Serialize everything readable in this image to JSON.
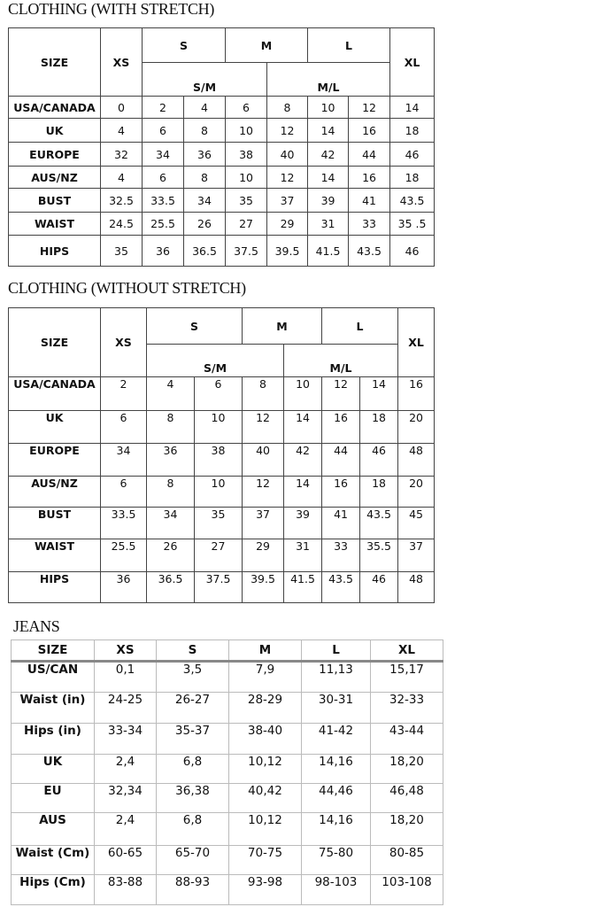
{
  "stretch": {
    "title": "CLOTHING (WITH STRETCH)",
    "header": {
      "size": "SIZE",
      "xs": "XS",
      "s": "S",
      "m": "M",
      "l": "L",
      "xl": "XL",
      "sm": "S/M",
      "ml": "M/L"
    },
    "rows": [
      {
        "label": "USA/CANADA",
        "values": [
          "0",
          "2",
          "4",
          "6",
          "8",
          "10",
          "12",
          "14"
        ]
      },
      {
        "label": "UK",
        "values": [
          "4",
          "6",
          "8",
          "10",
          "12",
          "14",
          "16",
          "18"
        ]
      },
      {
        "label": "EUROPE",
        "values": [
          "32",
          "34",
          "36",
          "38",
          "40",
          "42",
          "44",
          "46"
        ]
      },
      {
        "label": "AUS/NZ",
        "values": [
          "4",
          "6",
          "8",
          "10",
          "12",
          "14",
          "16",
          "18"
        ]
      },
      {
        "label": "BUST",
        "values": [
          "32.5",
          "33.5",
          "34",
          "35",
          "37",
          "39",
          "41",
          "43.5"
        ]
      },
      {
        "label": "WAIST",
        "values": [
          "24.5",
          "25.5",
          "26",
          "27",
          "29",
          "31",
          "33",
          "35 .5"
        ]
      },
      {
        "label": "HIPS",
        "values": [
          "35",
          "36",
          "36.5",
          "37.5",
          "39.5",
          "41.5",
          "43.5",
          "46"
        ]
      }
    ]
  },
  "nostretch": {
    "title": "CLOTHING (WITHOUT STRETCH)",
    "header": {
      "size": "SIZE",
      "xs": "XS",
      "s": "S",
      "m": "M",
      "l": "L",
      "xl": "XL",
      "sm": "S/M",
      "ml": "M/L"
    },
    "rows": [
      {
        "label": "USA/CANADA",
        "values": [
          "2",
          "4",
          "6",
          "8",
          "10",
          "12",
          "14",
          "16"
        ]
      },
      {
        "label": "UK",
        "values": [
          "6",
          "8",
          "10",
          "12",
          "14",
          "16",
          "18",
          "20"
        ]
      },
      {
        "label": "EUROPE",
        "values": [
          "34",
          "36",
          "38",
          "40",
          "42",
          "44",
          "46",
          "48"
        ]
      },
      {
        "label": "AUS/NZ",
        "values": [
          "6",
          "8",
          "10",
          "12",
          "14",
          "16",
          "18",
          "20"
        ]
      },
      {
        "label": "BUST",
        "values": [
          "33.5",
          "34",
          "35",
          "37",
          "39",
          "41",
          "43.5",
          "45"
        ]
      },
      {
        "label": "WAIST",
        "values": [
          "25.5",
          "26",
          "27",
          "29",
          "31",
          "33",
          "35.5",
          "37"
        ]
      },
      {
        "label": "HIPS",
        "values": [
          "36",
          "36.5",
          "37.5",
          "39.5",
          "41.5",
          "43.5",
          "46",
          "48"
        ]
      }
    ]
  },
  "jeans": {
    "title": "JEANS",
    "header": [
      "SIZE",
      "XS",
      "S",
      "M",
      "L",
      "XL"
    ],
    "rows": [
      {
        "label": "US/CAN",
        "values": [
          "0,1",
          "3,5",
          "7,9",
          "11,13",
          "15,17"
        ]
      },
      {
        "label": "Waist (in)",
        "values": [
          "24-25",
          "26-27",
          "28-29",
          "30-31",
          "32-33"
        ]
      },
      {
        "label": "Hips (in)",
        "values": [
          "33-34",
          "35-37",
          "38-40",
          "41-42",
          "43-44"
        ]
      },
      {
        "label": "UK",
        "values": [
          "2,4",
          "6,8",
          "10,12",
          "14,16",
          "18,20"
        ]
      },
      {
        "label": "EU",
        "values": [
          "32,34",
          "36,38",
          "40,42",
          "44,46",
          "46,48"
        ]
      },
      {
        "label": "AUS",
        "values": [
          "2,4",
          "6,8",
          "10,12",
          "14,16",
          "18,20"
        ]
      },
      {
        "label": "Waist (Cm)",
        "values": [
          "60-65",
          "65-70",
          "70-75",
          "75-80",
          "80-85"
        ]
      },
      {
        "label": "Hips (Cm)",
        "values": [
          "83-88",
          "88-93",
          "93-98",
          "98-103",
          "103-108"
        ]
      }
    ]
  }
}
